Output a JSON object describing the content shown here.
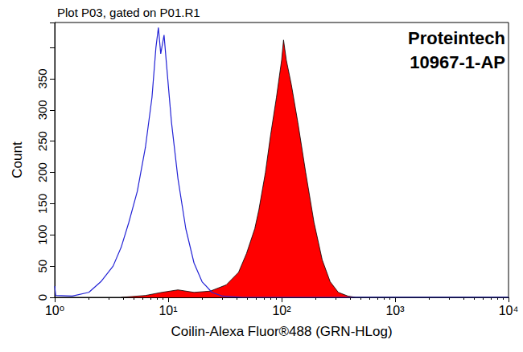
{
  "chart_data": {
    "type": "line",
    "title": "Plot P03, gated on P01.R1",
    "annotations": [
      "Proteintech",
      "10967-1-AP"
    ],
    "x_label": "Coilin-Alexa Fluor®488 (GRN-HLog)",
    "y_label": "Count",
    "log": "x",
    "grid": false,
    "xlim": [
      1,
      10000
    ],
    "xticks": [
      {
        "value": 1,
        "label": "10⁰"
      },
      {
        "value": 10,
        "label": "10¹"
      },
      {
        "value": 100,
        "label": "10²"
      },
      {
        "value": 1000,
        "label": "10³"
      },
      {
        "value": 10000,
        "label": "10⁴"
      }
    ],
    "ylim": [
      0,
      440
    ],
    "yticks": [
      0,
      50,
      100,
      150,
      200,
      250,
      300,
      350
    ],
    "series": [
      {
        "type": "line",
        "color": "#2424d6",
        "x": [
          1,
          1.02,
          1.43,
          2.0,
          2.55,
          3.27,
          3.85,
          4.5,
          5.35,
          6.3,
          7.2,
          7.8,
          8.2,
          8.6,
          9.2,
          9.7,
          10.7,
          12.2,
          14.3,
          16.9,
          19.9,
          24.3,
          30,
          45,
          1000,
          10000
        ],
        "values": [
          18,
          3,
          2,
          8,
          25,
          50,
          80,
          120,
          170,
          240,
          320,
          400,
          432,
          390,
          420,
          370,
          280,
          190,
          110,
          55,
          25,
          8,
          2,
          0,
          0,
          0
        ]
      },
      {
        "type": "area",
        "color": "#ff0000",
        "x": [
          3.85,
          6.3,
          8.8,
          12.2,
          16.9,
          23.5,
          32.5,
          41.7,
          49,
          58,
          63,
          72,
          80,
          90,
          100,
          104,
          110,
          122,
          139,
          163,
          193,
          228,
          268,
          316,
          385,
          452,
          1000,
          10000
        ],
        "values": [
          0,
          3,
          8,
          12,
          8,
          10,
          20,
          40,
          70,
          110,
          140,
          200,
          260,
          320,
          380,
          412,
          380,
          340,
          280,
          200,
          120,
          60,
          25,
          8,
          2,
          0,
          0,
          0
        ]
      }
    ]
  }
}
